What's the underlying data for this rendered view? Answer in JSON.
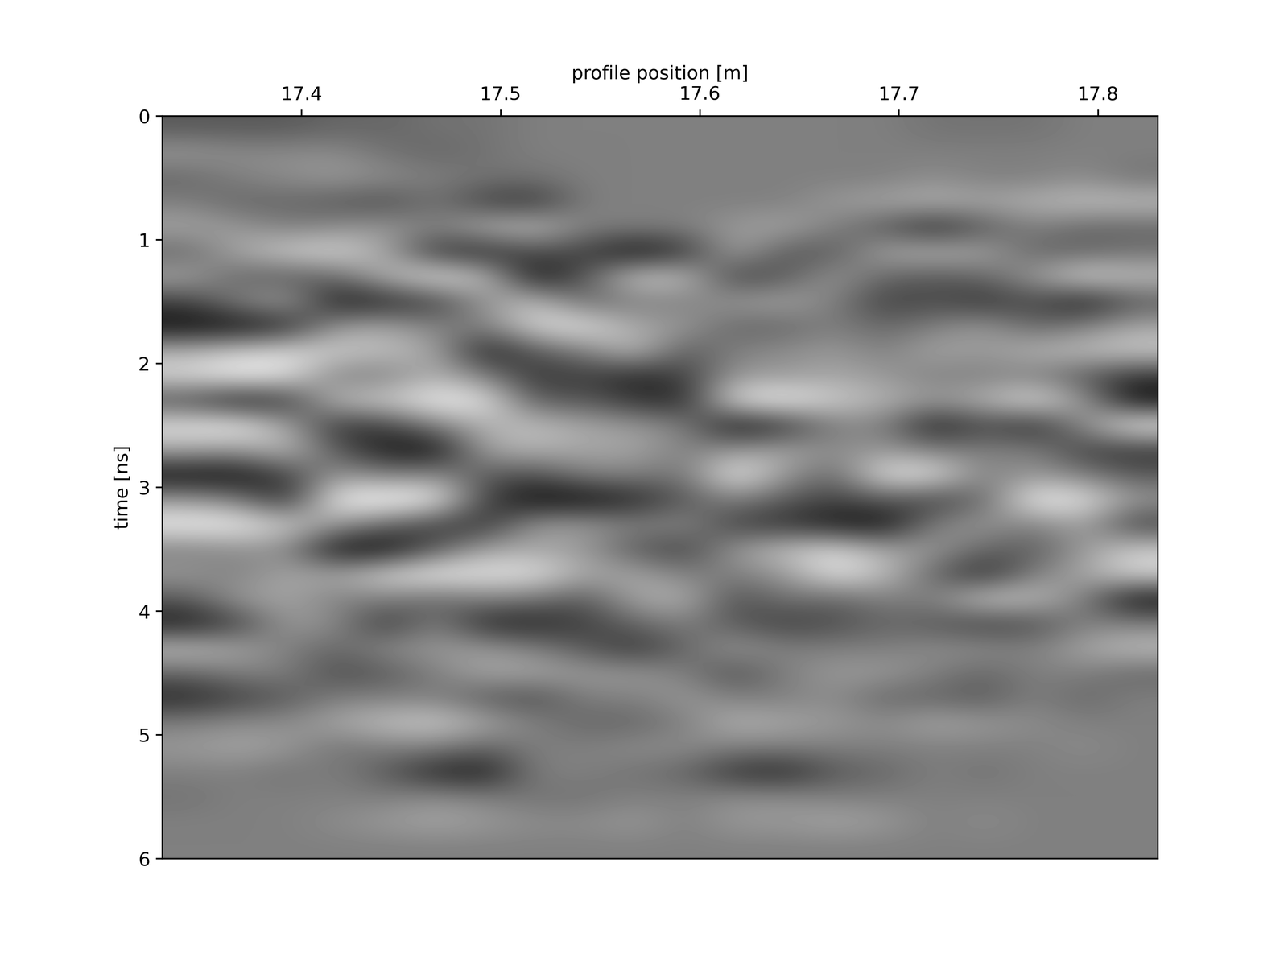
{
  "chart_data": {
    "type": "heatmap",
    "xlabel": "profile position [m]",
    "ylabel": "time [ns]",
    "xlim": [
      17.33,
      17.83
    ],
    "ylim": [
      6,
      0
    ],
    "xticks": [
      17.4,
      17.5,
      17.6,
      17.7,
      17.8
    ],
    "yticks": [
      0,
      1,
      2,
      3,
      4,
      5,
      6
    ],
    "color": "gray",
    "value_range": [
      -1,
      1
    ],
    "x": [
      17.3425,
      17.3675,
      17.3925,
      17.4175,
      17.4425,
      17.4675,
      17.4925,
      17.5175,
      17.5425,
      17.5675,
      17.5925,
      17.6175,
      17.6425,
      17.6675,
      17.6925,
      17.7175,
      17.7425,
      17.7675,
      17.7925,
      17.8175
    ],
    "y": [
      0.1,
      0.3,
      0.5,
      0.7,
      0.9,
      1.1,
      1.3,
      1.5,
      1.7,
      1.9,
      2.1,
      2.3,
      2.5,
      2.7,
      2.9,
      3.1,
      3.3,
      3.5,
      3.7,
      3.9,
      4.1,
      4.3,
      4.5,
      4.7,
      4.9,
      5.1,
      5.3,
      5.5,
      5.7,
      5.9
    ],
    "cells": [
      [
        -0.3,
        -0.3,
        -0.3,
        -0.2,
        -0.2,
        -0.1,
        -0.1,
        0,
        0,
        0,
        0,
        0,
        0,
        0,
        0,
        -0.1,
        -0.1,
        -0.1,
        0,
        0
      ],
      [
        0.2,
        0.1,
        0.1,
        0.1,
        -0.1,
        -0.2,
        -0.1,
        0,
        0,
        0,
        0,
        0,
        0,
        0,
        0,
        0,
        0,
        0,
        0,
        0
      ],
      [
        -0.2,
        0,
        0.1,
        0.2,
        0.1,
        0,
        -0.1,
        -0.1,
        0,
        0,
        0,
        0,
        0,
        0,
        0,
        0.1,
        0,
        0,
        0.1,
        -0.1
      ],
      [
        0,
        -0.2,
        -0.2,
        -0.3,
        -0.4,
        -0.1,
        -0.5,
        -0.6,
        0,
        0,
        0,
        0,
        0,
        0.2,
        0.3,
        0.4,
        0.3,
        0.4,
        0.5,
        0.5
      ],
      [
        0.3,
        0.2,
        0,
        0.1,
        0.2,
        0,
        0.4,
        0.5,
        0,
        0,
        0,
        0.2,
        0.3,
        0,
        -0.3,
        -0.7,
        -0.3,
        0,
        -0.2,
        -0.2
      ],
      [
        -0.2,
        0.3,
        0.6,
        0.7,
        0.3,
        -0.6,
        -0.7,
        -0.4,
        -0.5,
        -0.9,
        -0.6,
        0.3,
        -0.3,
        -0.3,
        0.3,
        0.4,
        0.3,
        -0.2,
        -0.2,
        -0.1
      ],
      [
        0.3,
        -0.2,
        -0.3,
        -0.2,
        0.4,
        0.8,
        0.5,
        -0.9,
        -0.3,
        0.6,
        0.5,
        -0.5,
        -0.3,
        0.2,
        -0.2,
        -0.3,
        -0.2,
        0.2,
        0.7,
        0.5
      ],
      [
        -0.5,
        0,
        0.3,
        -0.8,
        -0.7,
        -0.5,
        0.2,
        0.5,
        -0.2,
        0,
        0,
        0.2,
        0.3,
        0,
        -0.5,
        -0.4,
        -0.6,
        -0.4,
        -0.8,
        -0.3
      ],
      [
        -0.9,
        -0.9,
        -0.7,
        0.2,
        0.3,
        0,
        0,
        0.7,
        0.8,
        0.3,
        0.2,
        -0.2,
        -0.2,
        0,
        -0.2,
        0,
        0.2,
        -0.2,
        0,
        0.3
      ],
      [
        0.4,
        0.6,
        0.7,
        0.6,
        0.5,
        0.3,
        -0.8,
        -0.3,
        0,
        0.5,
        -0.3,
        0,
        0.1,
        0.2,
        0,
        0.3,
        0.2,
        0.4,
        0.5,
        0.6
      ],
      [
        0.7,
        0.9,
        0.8,
        0,
        0,
        0.4,
        0,
        -0.6,
        -0.5,
        -0.7,
        -0.5,
        0.2,
        0.2,
        0.3,
        0.2,
        0,
        0,
        0,
        -0.3,
        -0.6
      ],
      [
        -0.4,
        -0.8,
        -0.6,
        0.5,
        0.6,
        0.9,
        0.8,
        -0.3,
        -0.3,
        -0.6,
        -0.7,
        0.8,
        0.9,
        0.6,
        0.4,
        0.2,
        0.4,
        0.8,
        0.2,
        -0.9
      ],
      [
        0.8,
        0.9,
        0.3,
        -0.6,
        -0.5,
        0,
        0.4,
        0.5,
        0.3,
        0.2,
        0,
        -0.9,
        -0.6,
        0,
        0,
        -0.8,
        -0.4,
        -0.7,
        0.1,
        0.9
      ],
      [
        0.3,
        0.2,
        0.5,
        -0.3,
        -0.8,
        -0.9,
        0.3,
        0.4,
        0.3,
        0.3,
        0,
        0.2,
        0.3,
        0.1,
        0.2,
        0,
        0,
        0,
        -0.5,
        -0.6
      ],
      [
        -0.9,
        -0.9,
        -0.5,
        0.2,
        0,
        0.1,
        -0.3,
        -0.4,
        0,
        0,
        -0.1,
        0.9,
        0.2,
        -0.2,
        0.8,
        0.8,
        0,
        0.2,
        0,
        -0.3
      ],
      [
        0.2,
        0,
        -0.7,
        0.9,
        1,
        0.9,
        -0.5,
        -0.9,
        -0.9,
        -0.7,
        -0.3,
        0,
        -0.3,
        -0.5,
        -0.3,
        -0.5,
        -0.2,
        0.9,
        0.8,
        0.2
      ],
      [
        0.9,
        0.9,
        0.6,
        0.2,
        -0.2,
        -0.5,
        -0.6,
        0.2,
        0.2,
        0,
        0.1,
        -0.5,
        -0.6,
        -0.8,
        -0.9,
        0,
        0.2,
        0,
        0.3,
        -0.5
      ],
      [
        0,
        0.1,
        0.1,
        -0.9,
        -0.9,
        -0.3,
        0.3,
        0.3,
        0.2,
        -0.3,
        -0.5,
        0.2,
        0.5,
        0.7,
        0.3,
        0.2,
        -0.2,
        -0.3,
        0.2,
        0.6
      ],
      [
        0.2,
        0,
        0.3,
        0.3,
        0.7,
        0.9,
        0.8,
        0.8,
        0.3,
        0.3,
        0,
        0,
        0.2,
        0.8,
        0.5,
        -0.2,
        -0.7,
        0,
        0.3,
        0.7
      ],
      [
        -0.3,
        0.2,
        0.3,
        0,
        0,
        -0.2,
        0,
        -0.1,
        -0.3,
        0.3,
        0.4,
        -0.4,
        -0.1,
        -0.2,
        0,
        0,
        0.6,
        0.5,
        0,
        -0.9
      ],
      [
        -0.8,
        -0.5,
        0.2,
        0.1,
        -0.6,
        0,
        -0.7,
        -0.7,
        -0.5,
        -0.2,
        0,
        -0.3,
        -0.5,
        -0.4,
        -0.2,
        -0.3,
        -0.5,
        -0.4,
        0,
        0
      ],
      [
        0.5,
        0.3,
        0,
        -0.2,
        0.1,
        0.2,
        0.2,
        0,
        -0.3,
        -0.6,
        -0.2,
        0.2,
        0,
        0,
        0,
        0.1,
        0.1,
        0,
        0.3,
        0.5
      ],
      [
        -0.2,
        0,
        0,
        -0.4,
        -0.3,
        0,
        0.3,
        0.3,
        0.2,
        0.2,
        0,
        -0.4,
        0,
        0.2,
        0.2,
        0,
        -0.2,
        0,
        0,
        -0.2
      ],
      [
        -0.7,
        -0.5,
        -0.3,
        0,
        0,
        0,
        -0.3,
        -0.4,
        0,
        0,
        0.2,
        0,
        0,
        0.1,
        -0.2,
        -0.2,
        -0.3,
        0,
        -0.2,
        0
      ],
      [
        0,
        0.1,
        0.1,
        0.3,
        0.5,
        0.6,
        0.3,
        0,
        -0.2,
        -0.2,
        0,
        0.4,
        0.3,
        0.2,
        0.1,
        0.3,
        0.2,
        0.1,
        0,
        0
      ],
      [
        0.2,
        0.3,
        0.2,
        -0.1,
        0,
        0,
        -0.2,
        0,
        0,
        0.1,
        0.1,
        0,
        0,
        0,
        0,
        0,
        0,
        0,
        0.1,
        0
      ],
      [
        0,
        0,
        -0.1,
        0,
        -0.3,
        -0.7,
        -0.8,
        0,
        0,
        -0.1,
        -0.2,
        -0.6,
        -0.7,
        -0.3,
        -0.2,
        0,
        -0.1,
        0,
        0,
        0
      ],
      [
        -0.1,
        0,
        0,
        0,
        0,
        0.1,
        0,
        -0.1,
        -0.1,
        0,
        0,
        0.1,
        0.1,
        0,
        0,
        0,
        0,
        0,
        0,
        0
      ],
      [
        0,
        0,
        0,
        0.1,
        0.2,
        0.3,
        0.2,
        0.1,
        0.1,
        0.2,
        0,
        0.2,
        0.2,
        0.3,
        0.2,
        0,
        0.1,
        0,
        0,
        0
      ],
      [
        0,
        0,
        0,
        0,
        0,
        0,
        0,
        0,
        0,
        0,
        0,
        0,
        0,
        0,
        0,
        0,
        0,
        0,
        0,
        0
      ]
    ]
  }
}
